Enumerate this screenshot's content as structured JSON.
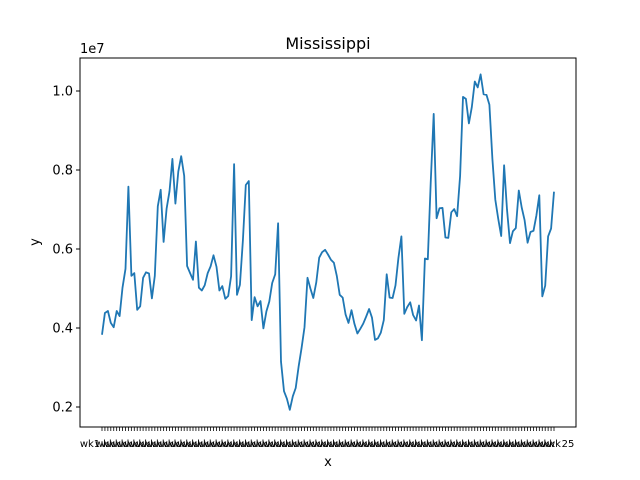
{
  "chart_data": {
    "type": "line",
    "title": "Mississippi",
    "xlabel": "x",
    "ylabel": "y",
    "offset_text": "1e7",
    "ylim": [
      15000000,
      10800000
    ],
    "yticks": [
      2000000,
      4000000,
      6000000,
      8000000,
      10000000
    ],
    "ytick_labels": [
      "0.2",
      "0.4",
      "0.6",
      "0.8",
      "1.0"
    ],
    "xtick_first_label": "wk1",
    "xtick_last_label": "25",
    "grid": false,
    "legend": "none",
    "line_color": "#1f77b4",
    "series": [
      {
        "values": [
          3830000,
          4380000,
          4430000,
          4130000,
          4020000,
          4430000,
          4300000,
          5020000,
          5500000,
          7580000,
          5320000,
          5390000,
          4460000,
          4550000,
          5270000,
          5410000,
          5380000,
          4750000,
          5320000,
          7080000,
          7500000,
          6180000,
          7020000,
          7460000,
          8280000,
          7150000,
          7960000,
          8350000,
          7850000,
          5570000,
          5390000,
          5220000,
          6190000,
          5020000,
          4950000,
          5080000,
          5390000,
          5560000,
          5840000,
          5550000,
          4950000,
          5060000,
          4740000,
          4810000,
          5310000,
          8150000,
          4840000,
          5090000,
          6220000,
          7620000,
          7720000,
          4200000,
          4780000,
          4550000,
          4680000,
          3990000,
          4420000,
          4670000,
          5140000,
          5360000,
          6650000,
          3150000,
          2400000,
          2210000,
          1930000,
          2270000,
          2480000,
          3020000,
          3500000,
          4020000,
          5270000,
          5000000,
          4760000,
          5160000,
          5780000,
          5920000,
          5980000,
          5860000,
          5730000,
          5650000,
          5320000,
          4840000,
          4770000,
          4340000,
          4130000,
          4450000,
          4110000,
          3860000,
          3980000,
          4110000,
          4290000,
          4480000,
          4260000,
          3700000,
          3740000,
          3880000,
          4200000,
          5360000,
          4770000,
          4760000,
          5080000,
          5770000,
          6320000,
          4360000,
          4530000,
          4650000,
          4330000,
          4190000,
          4570000,
          3690000,
          5760000,
          5740000,
          7670000,
          9420000,
          6780000,
          7030000,
          7040000,
          6290000,
          6280000,
          6930000,
          7010000,
          6830000,
          7850000,
          9850000,
          9800000,
          9180000,
          9590000,
          10240000,
          10090000,
          10420000,
          9920000,
          9900000,
          9650000,
          8280000,
          7250000,
          6770000,
          6330000,
          8120000,
          7000000,
          6150000,
          6450000,
          6530000,
          7480000,
          7050000,
          6730000,
          6160000,
          6430000,
          6460000,
          6850000,
          7360000,
          4800000,
          5070000,
          6320000,
          6520000,
          7450000
        ]
      }
    ]
  }
}
